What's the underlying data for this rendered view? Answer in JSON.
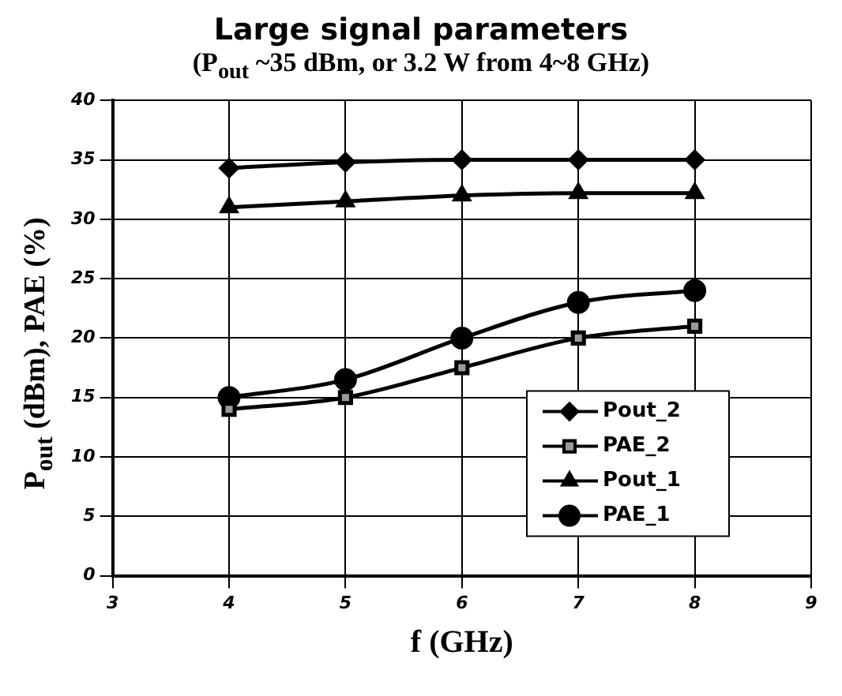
{
  "chart_data": {
    "type": "line",
    "title": "Large signal parameters",
    "subtitle": "(P$_{out}$ ~35 dBm, or 3.2 W from 4~8 GHz)",
    "xlabel": "f (GHz)",
    "ylabel": "P$_{out}$ (dBm), PAE (%)",
    "x": [
      4,
      5,
      6,
      7,
      8
    ],
    "series": [
      {
        "name": "Pout_2",
        "color": "#000000",
        "marker": "diamond",
        "values": [
          34.3,
          34.8,
          35,
          35,
          35
        ]
      },
      {
        "name": "PAE_2",
        "color": "#000000",
        "marker": "square",
        "values": [
          14,
          15,
          17.5,
          20,
          21
        ]
      },
      {
        "name": "Pout_1",
        "color": "#000000",
        "marker": "triangle",
        "values": [
          31,
          31.5,
          32,
          32.2,
          32.2
        ]
      },
      {
        "name": "PAE_1",
        "color": "#000000",
        "marker": "circle",
        "values": [
          15,
          16.5,
          20,
          23,
          24
        ]
      }
    ],
    "xlim": [
      3,
      9
    ],
    "xticks": [
      3,
      4,
      5,
      6,
      7,
      8,
      9
    ],
    "ylim": [
      0,
      40
    ],
    "yticks": [
      0,
      5,
      10,
      15,
      20,
      25,
      30,
      35,
      40
    ],
    "grid": true,
    "legend": "bottom right",
    "line_style": "solid"
  }
}
